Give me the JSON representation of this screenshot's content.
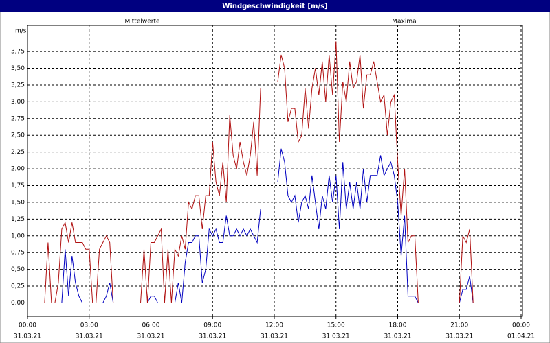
{
  "chart_data": {
    "type": "line",
    "title": "Windgeschwindigkeit [m/s]",
    "y_label": "m/s",
    "x": [
      0,
      10,
      20,
      30,
      40,
      50,
      60,
      70,
      80,
      90,
      100,
      110,
      120,
      130,
      140,
      150,
      160,
      170,
      180,
      190,
      200,
      210,
      220,
      230,
      240,
      250,
      260,
      270,
      280,
      290,
      300,
      310,
      320,
      330,
      340,
      350,
      360,
      370,
      380,
      390,
      400,
      410,
      420,
      430,
      440,
      450,
      460,
      470,
      480,
      490,
      500,
      510,
      520,
      530,
      540,
      550,
      560,
      570,
      580,
      590,
      600,
      610,
      620,
      630,
      640,
      650,
      660,
      670,
      680,
      690,
      700,
      710,
      720,
      730,
      740,
      750,
      760,
      770,
      780,
      790,
      800,
      810,
      820,
      830,
      840,
      850,
      860,
      870,
      880,
      890,
      900,
      910,
      920,
      930,
      940,
      950,
      960,
      970,
      980,
      990,
      1000,
      1010,
      1020,
      1030,
      1040,
      1050,
      1060,
      1070,
      1080,
      1090,
      1100,
      1110,
      1120,
      1130,
      1140,
      1150,
      1160,
      1170,
      1180,
      1190,
      1200,
      1210,
      1220,
      1230,
      1240,
      1250,
      1260,
      1270,
      1280,
      1290,
      1300,
      1310,
      1320,
      1330,
      1340,
      1350,
      1360,
      1370,
      1380,
      1390,
      1400,
      1410,
      1420,
      1430,
      1440
    ],
    "series": [
      {
        "name": "Mittelwerte",
        "color": "#0000c0",
        "values": [
          0,
          0,
          0,
          0,
          0,
          0,
          0,
          0,
          0,
          0,
          0,
          0.8,
          0.1,
          0.7,
          0.3,
          0.1,
          0,
          0,
          0,
          0,
          0,
          0,
          0,
          0.1,
          0.3,
          0,
          0,
          0,
          0,
          0,
          0,
          0,
          0,
          0,
          0,
          0,
          0.1,
          0.1,
          0,
          0,
          0,
          0,
          0,
          0,
          0.3,
          0,
          0.6,
          0.9,
          0.9,
          1.0,
          1.0,
          0.3,
          0.5,
          1.1,
          1.0,
          1.1,
          0.9,
          0.9,
          1.3,
          1.0,
          1.0,
          1.1,
          1.0,
          1.1,
          1.0,
          1.1,
          1.0,
          0.9,
          1.4,
          null,
          null,
          null,
          null,
          1.8,
          2.3,
          2.1,
          1.6,
          1.5,
          1.6,
          1.2,
          1.5,
          1.6,
          1.4,
          1.9,
          1.5,
          1.1,
          1.6,
          1.4,
          1.9,
          1.5,
          1.9,
          1.1,
          2.1,
          1.4,
          1.8,
          1.4,
          1.8,
          1.4,
          2.0,
          1.5,
          1.9,
          1.9,
          1.9,
          2.2,
          1.9,
          2.0,
          2.1,
          1.9,
          1.5,
          0.7,
          1.3,
          0.1,
          0.1,
          0.1,
          0,
          0,
          0,
          0,
          0,
          0,
          0,
          0,
          0,
          0,
          0,
          0,
          0,
          0.2,
          0.2,
          0.4,
          0,
          0,
          0,
          0,
          0,
          0,
          0,
          0,
          0,
          0,
          0,
          0,
          0,
          0,
          0
        ]
      },
      {
        "name": "Maxima",
        "color": "#b01010",
        "values": [
          0,
          0,
          0,
          0,
          0,
          0,
          0.9,
          0,
          0,
          0.3,
          1.1,
          1.2,
          0.9,
          1.2,
          0.9,
          0.9,
          0.9,
          0.8,
          0.8,
          0,
          0,
          0.8,
          0.9,
          1.0,
          0.9,
          0,
          0,
          0,
          0,
          0,
          0,
          0,
          0,
          0,
          0.8,
          0,
          0.9,
          0.9,
          1.0,
          1.1,
          0,
          0.8,
          0,
          0.8,
          0.7,
          1.0,
          0.8,
          1.5,
          1.4,
          1.6,
          1.6,
          1.1,
          1.6,
          1.6,
          2.4,
          1.8,
          1.6,
          2.1,
          1.5,
          2.8,
          2.2,
          2.0,
          2.4,
          2.1,
          1.9,
          2.2,
          2.7,
          1.9,
          3.2,
          null,
          null,
          null,
          null,
          3.3,
          3.7,
          3.5,
          2.7,
          2.9,
          2.9,
          2.4,
          2.5,
          3.2,
          2.6,
          3.2,
          3.5,
          3.1,
          3.6,
          3.0,
          3.7,
          3.1,
          3.9,
          2.4,
          3.3,
          3.0,
          3.6,
          3.2,
          3.3,
          3.7,
          2.9,
          3.4,
          3.4,
          3.6,
          3.3,
          3.0,
          3.1,
          2.5,
          3.0,
          3.1,
          2.1,
          1.3,
          2.0,
          0.9,
          1.0,
          1.0,
          0,
          0,
          0,
          0,
          0,
          0,
          0,
          0,
          0,
          0,
          0,
          0,
          0,
          1.0,
          0.9,
          1.1,
          0,
          0,
          0,
          0,
          0,
          0,
          0,
          0,
          0,
          0,
          0,
          0,
          0,
          0,
          0
        ]
      }
    ],
    "xlim": [
      0,
      1440
    ],
    "xticks": [
      {
        "value": 0,
        "label": "00:00"
      },
      {
        "value": 180,
        "label": "03:00"
      },
      {
        "value": 360,
        "label": "06:00"
      },
      {
        "value": 540,
        "label": "09:00"
      },
      {
        "value": 720,
        "label": "12:00"
      },
      {
        "value": 900,
        "label": "15:00"
      },
      {
        "value": 1080,
        "label": "18:00"
      },
      {
        "value": 1260,
        "label": "21:00"
      },
      {
        "value": 1440,
        "label": "00:00"
      }
    ],
    "xtick_dates": [
      "31.03.21",
      "31.03.21",
      "31.03.21",
      "31.03.21",
      "31.03.21",
      "31.03.21",
      "31.03.21",
      "31.03.21",
      "01.04.21"
    ],
    "ylim": [
      -0.2,
      4.14
    ],
    "yticks": [
      {
        "value": 0,
        "label": "0,00"
      },
      {
        "value": 0.25,
        "label": "0,25"
      },
      {
        "value": 0.5,
        "label": "0,50"
      },
      {
        "value": 0.75,
        "label": "0,75"
      },
      {
        "value": 1,
        "label": "1,00"
      },
      {
        "value": 1.25,
        "label": "1,25"
      },
      {
        "value": 1.5,
        "label": "1,50"
      },
      {
        "value": 1.75,
        "label": "1,75"
      },
      {
        "value": 2,
        "label": "2,00"
      },
      {
        "value": 2.25,
        "label": "2,25"
      },
      {
        "value": 2.5,
        "label": "2,50"
      },
      {
        "value": 2.75,
        "label": "2,75"
      },
      {
        "value": 3,
        "label": "3,00"
      },
      {
        "value": 3.25,
        "label": "3,25"
      },
      {
        "value": 3.5,
        "label": "3,50"
      },
      {
        "value": 3.75,
        "label": "3,75"
      }
    ],
    "grid": true
  }
}
